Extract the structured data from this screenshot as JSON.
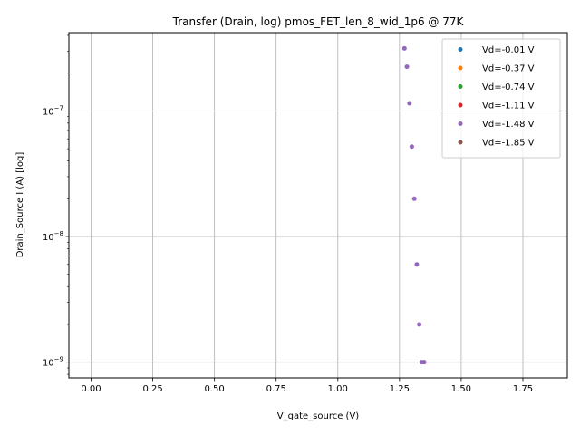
{
  "chart_data": {
    "type": "scatter",
    "title": "Transfer (Drain, log) pmos_FET_len_8_wid_1p6 @ 77K",
    "xlabel": "V_gate_source (V)",
    "ylabel": "Drain_Source I (A) [log]",
    "xlim": [
      -0.09,
      1.93
    ],
    "ylim": [
      7.5e-10,
      4.2e-07
    ],
    "yscale": "log",
    "grid": true,
    "legend_position": "top-right",
    "x_ticks": [
      {
        "value": 0.0,
        "label": "0.00"
      },
      {
        "value": 0.25,
        "label": "0.25"
      },
      {
        "value": 0.5,
        "label": "0.50"
      },
      {
        "value": 0.75,
        "label": "0.75"
      },
      {
        "value": 1.0,
        "label": "1.00"
      },
      {
        "value": 1.25,
        "label": "1.25"
      },
      {
        "value": 1.5,
        "label": "1.50"
      },
      {
        "value": 1.75,
        "label": "1.75"
      }
    ],
    "y_ticks": [
      {
        "value": 1e-09,
        "base": "10",
        "exp": "−9"
      },
      {
        "value": 1e-08,
        "base": "10",
        "exp": "−8"
      },
      {
        "value": 1e-07,
        "base": "10",
        "exp": "−7"
      }
    ],
    "series": [
      {
        "name": "Vd=-0.01 V",
        "color": "#1f77b4",
        "points": []
      },
      {
        "name": "Vd=-0.37 V",
        "color": "#ff7f0e",
        "points": []
      },
      {
        "name": "Vd=-0.74 V",
        "color": "#2ca02c",
        "points": []
      },
      {
        "name": "Vd=-1.11 V",
        "color": "#d62728",
        "points": []
      },
      {
        "name": "Vd=-1.48 V",
        "color": "#9467bd",
        "points": [
          [
            1.27,
            3.15e-07
          ],
          [
            1.28,
            2.25e-07
          ],
          [
            1.29,
            1.15e-07
          ],
          [
            1.3,
            5.2e-08
          ],
          [
            1.31,
            2e-08
          ],
          [
            1.32,
            6e-09
          ],
          [
            1.33,
            2e-09
          ],
          [
            1.34,
            1e-09
          ],
          [
            1.35,
            1e-09
          ]
        ]
      },
      {
        "name": "Vd=-1.85 V",
        "color": "#8c564b",
        "points": []
      }
    ]
  }
}
